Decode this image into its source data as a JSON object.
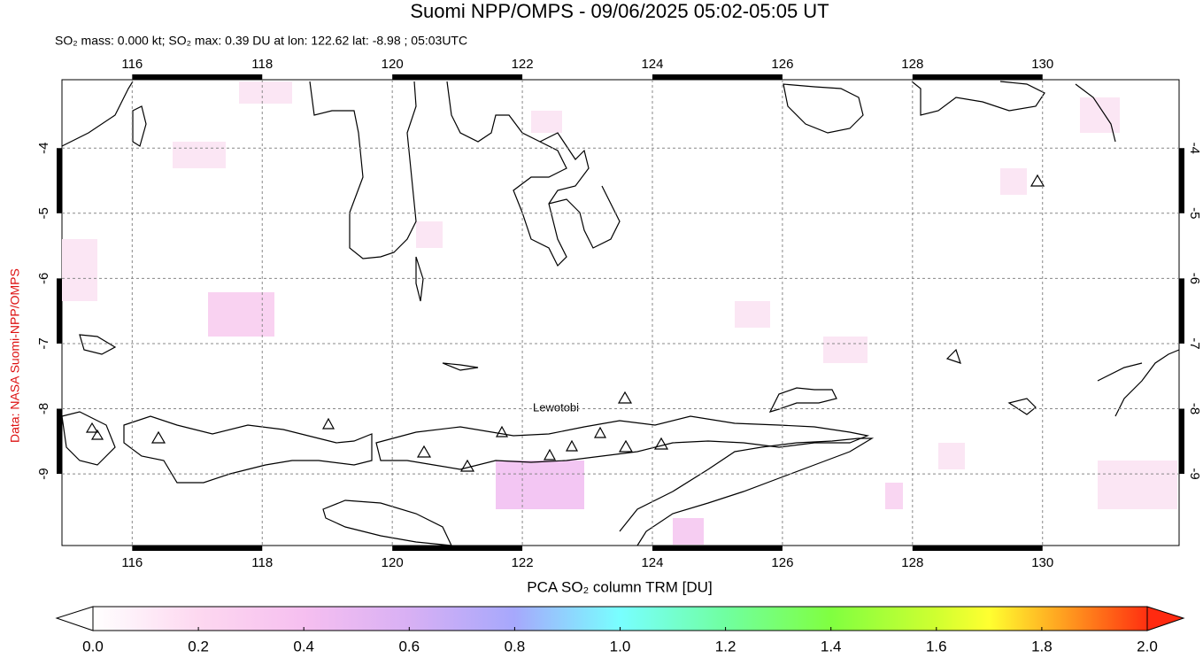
{
  "header": {
    "title": "Suomi NPP/OMPS - 09/06/2025 05:02-05:05 UT",
    "subtitle": "SO₂ mass: 0.000 kt; SO₂ max: 0.39 DU at lon: 122.62 lat: -8.98 ; 05:03UTC"
  },
  "side_label": "Data: NASA Suomi-NPP/OMPS",
  "map": {
    "lon_range": [
      114.92,
      132.1
    ],
    "lat_range": [
      -10.1,
      -2.95
    ],
    "lon_ticks": [
      116,
      118,
      120,
      122,
      124,
      126,
      128,
      130
    ],
    "lat_ticks": [
      -4,
      -5,
      -6,
      -7,
      -8,
      -9
    ],
    "annotation": "Lewotobi"
  },
  "colorbar": {
    "label": "PCA SO₂ column TRM [DU]",
    "range": [
      0,
      2
    ],
    "ticks": [
      {
        "value": 0,
        "label": "0.0"
      },
      {
        "value": 0.2,
        "label": "0.2"
      },
      {
        "value": 0.4,
        "label": "0.4"
      },
      {
        "value": 0.6,
        "label": "0.6"
      },
      {
        "value": 0.8,
        "label": "0.8"
      },
      {
        "value": 1,
        "label": "1.0"
      },
      {
        "value": 1.2,
        "label": "1.2"
      },
      {
        "value": 1.4,
        "label": "1.4"
      },
      {
        "value": 1.6,
        "label": "1.6"
      },
      {
        "value": 1.8,
        "label": "1.8"
      },
      {
        "value": 2,
        "label": "2.0"
      }
    ]
  }
}
